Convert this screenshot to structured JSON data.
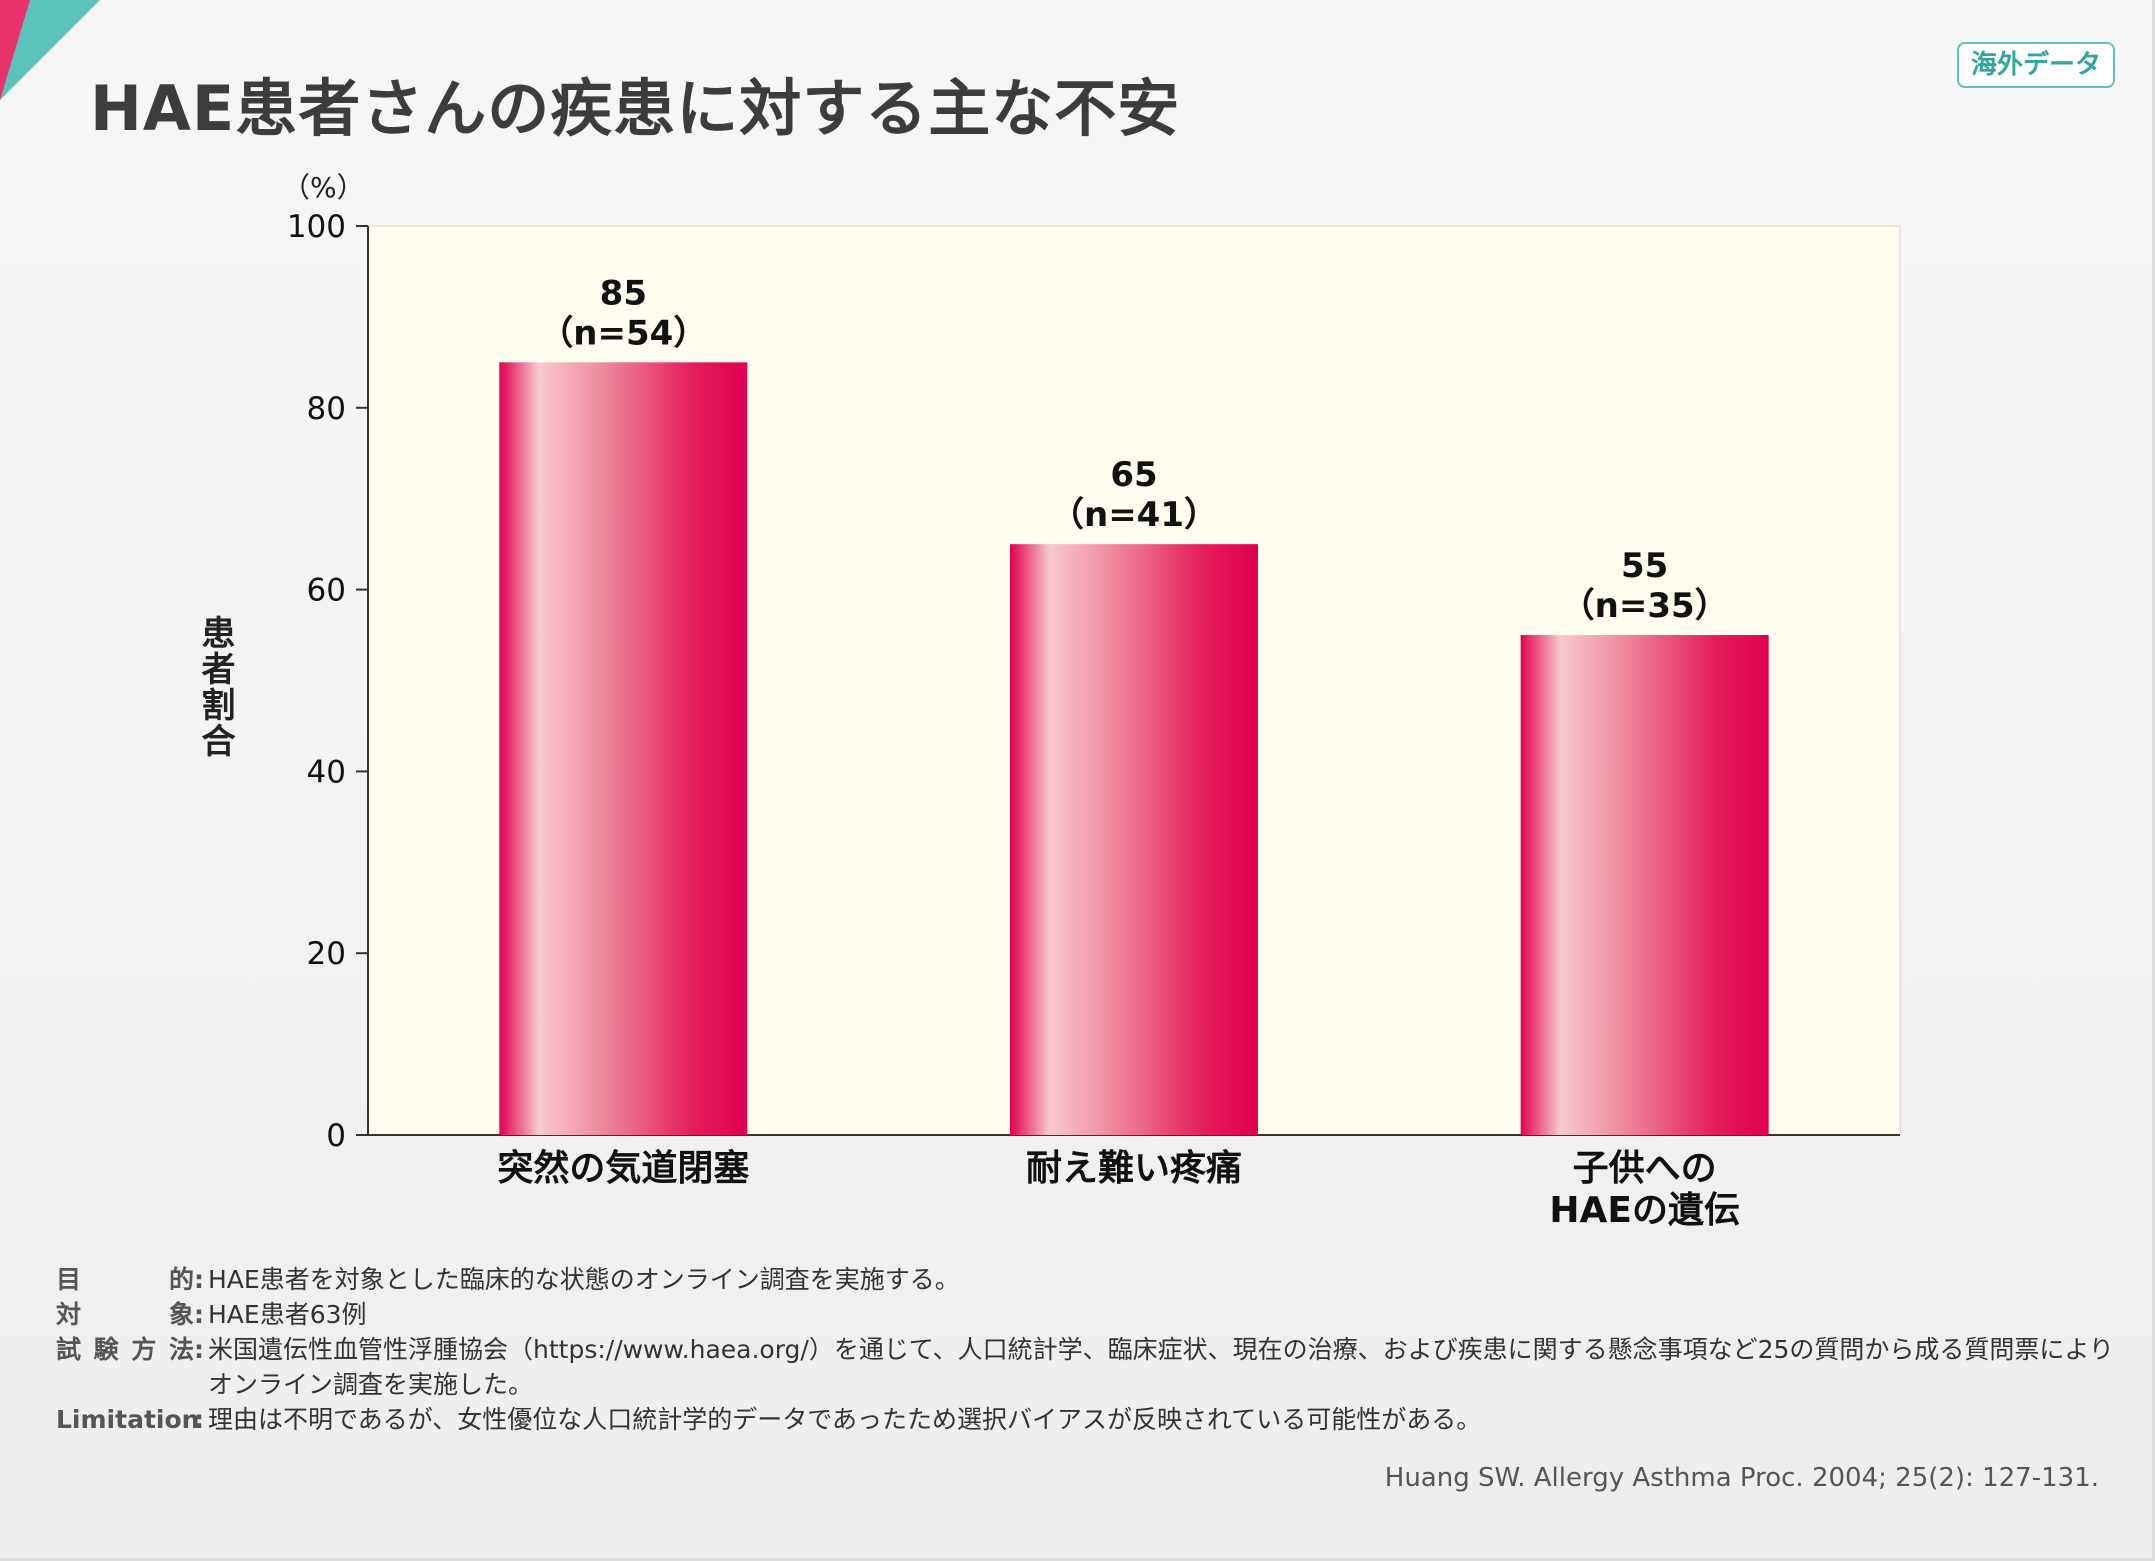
{
  "header": {
    "title": "HAE患者さんの疾患に対する主な不安",
    "badge": "海外データ"
  },
  "colors": {
    "bar_dark": "#e0004f",
    "bar_light": "#f8c9d0",
    "plot_background": "#fefdf0",
    "accent_pink": "#e8336d",
    "accent_teal": "#5cc3bc"
  },
  "chart_data": {
    "type": "bar",
    "title": "",
    "ylabel": "患者割合",
    "yunit": "（%）",
    "ylim": [
      0,
      100
    ],
    "yticks": [
      "0",
      "20",
      "40",
      "60",
      "80",
      "100"
    ],
    "categories": [
      [
        "突然の気道閉塞"
      ],
      [
        "耐え難い疼痛"
      ],
      [
        "子供への",
        "HAEの遺伝"
      ]
    ],
    "values": [
      85,
      65,
      55
    ],
    "data_labels": [
      [
        "85",
        "（n=54）"
      ],
      [
        "65",
        "（n=41）"
      ],
      [
        "55",
        "（n=35）"
      ]
    ],
    "grid": false,
    "legend": "none"
  },
  "notes": [
    {
      "label": "目的",
      "text": "HAE患者を対象とした臨床的な状態のオンライン調査を実施する。"
    },
    {
      "label": "対象",
      "text": "HAE患者63例"
    },
    {
      "label": "試験方法",
      "text": "米国遺伝性血管性浮腫協会（https://www.haea.org/）を通じて、人口統計学、臨床症状、現在の治療、および疾患に関する懸念事項など25の質問から成る質問票によりオンライン調査を実施した。"
    },
    {
      "label": "Limitation",
      "text": "理由は不明であるが、女性優位な人口統計学的データであったため選択バイアスが反映されている可能性がある。"
    }
  ],
  "citation": "Huang SW. Allergy Asthma Proc. 2004; 25(2): 127-131."
}
